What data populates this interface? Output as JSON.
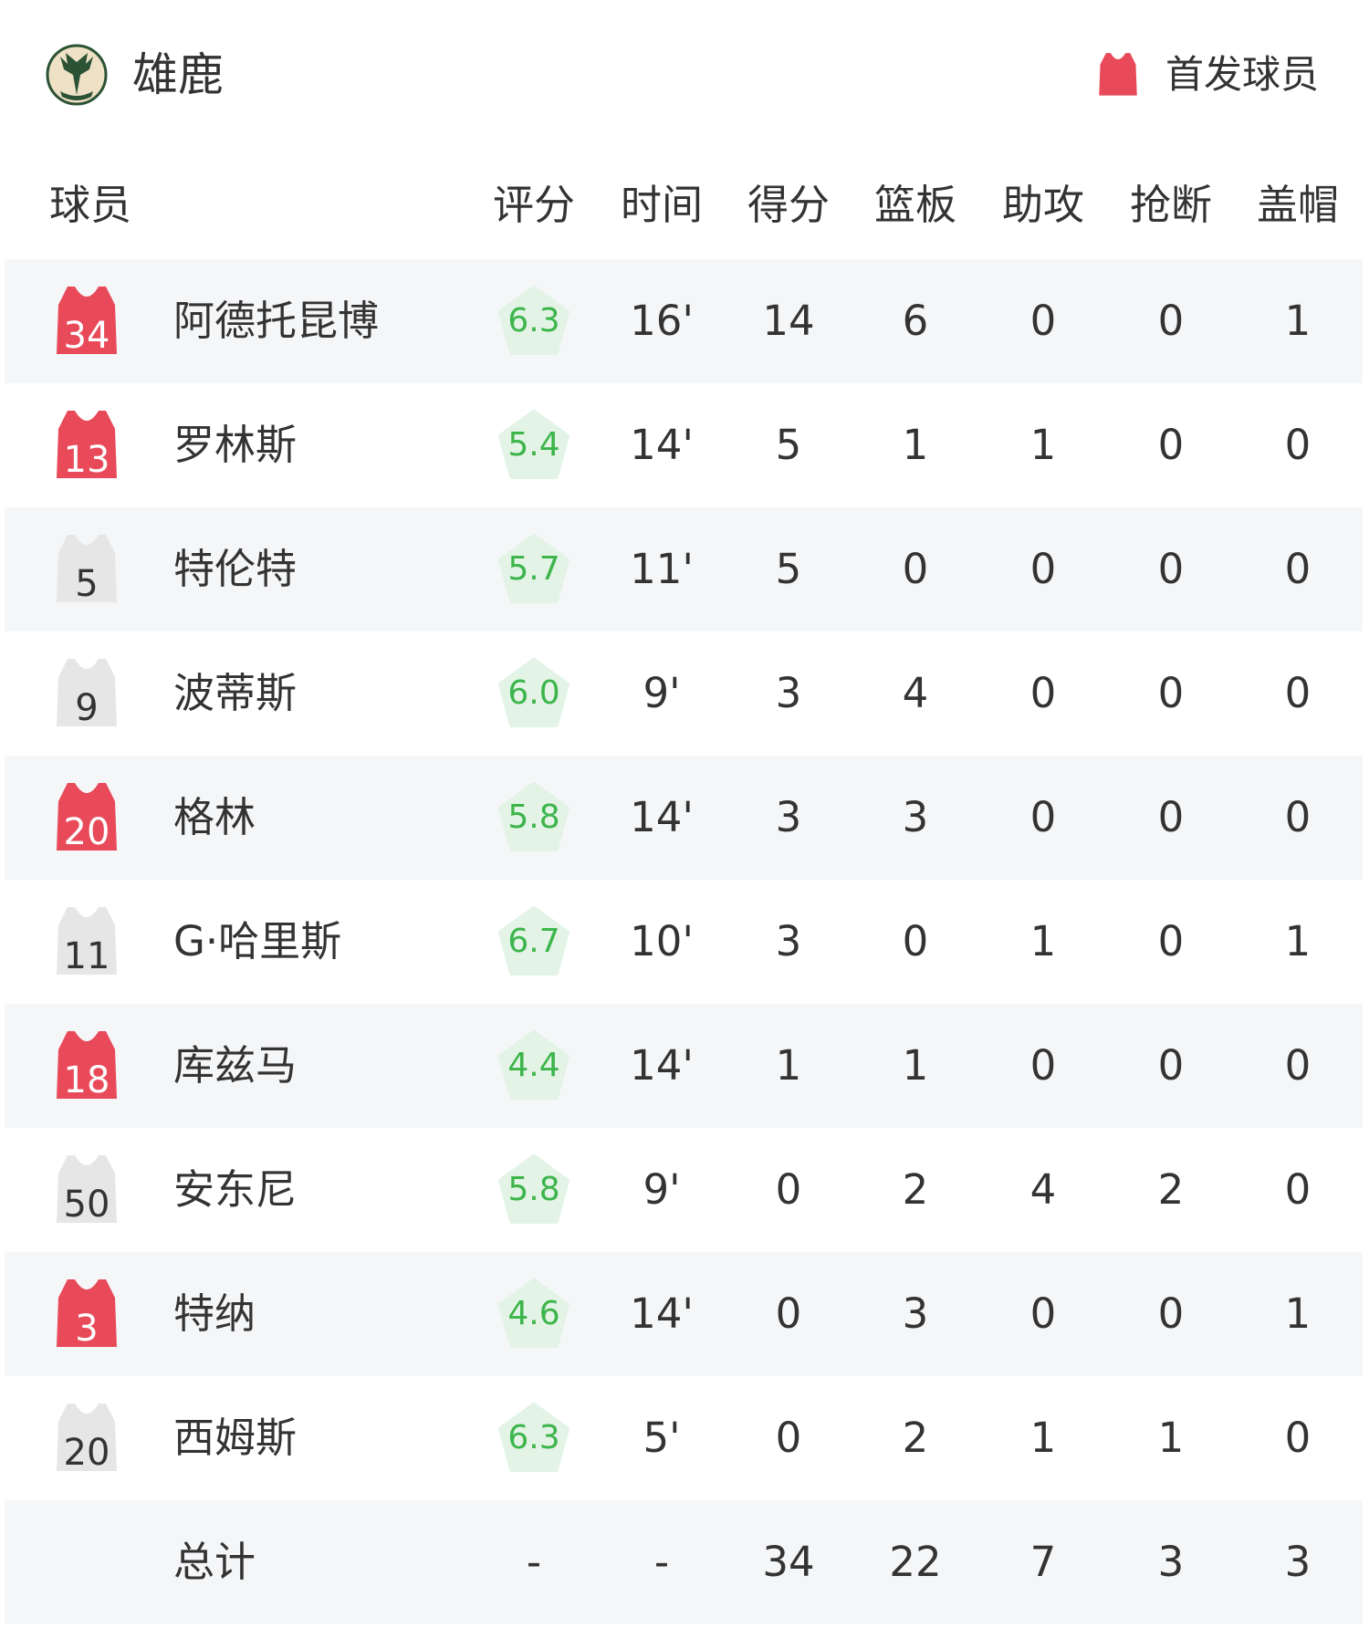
{
  "header": {
    "team_name": "雄鹿",
    "logo_text": "BUCKS",
    "legend_label": "首发球员"
  },
  "colors": {
    "starter": "#e84a5a",
    "bench": "#e6e6e6",
    "rating_text": "#3cb54a",
    "rating_bg": "#e3f3e6",
    "row_alt": "#f5f6f8"
  },
  "columns": [
    "球员",
    "评分",
    "时间",
    "得分",
    "篮板",
    "助攻",
    "抢断",
    "盖帽"
  ],
  "players": [
    {
      "number": "34",
      "starter": true,
      "name": "阿德托昆博",
      "rating": "6.3",
      "time": "16'",
      "pts": "14",
      "reb": "6",
      "ast": "0",
      "stl": "0",
      "blk": "1"
    },
    {
      "number": "13",
      "starter": true,
      "name": "罗林斯",
      "rating": "5.4",
      "time": "14'",
      "pts": "5",
      "reb": "1",
      "ast": "1",
      "stl": "0",
      "blk": "0"
    },
    {
      "number": "5",
      "starter": false,
      "name": "特伦特",
      "rating": "5.7",
      "time": "11'",
      "pts": "5",
      "reb": "0",
      "ast": "0",
      "stl": "0",
      "blk": "0"
    },
    {
      "number": "9",
      "starter": false,
      "name": "波蒂斯",
      "rating": "6.0",
      "time": "9'",
      "pts": "3",
      "reb": "4",
      "ast": "0",
      "stl": "0",
      "blk": "0"
    },
    {
      "number": "20",
      "starter": true,
      "name": "格林",
      "rating": "5.8",
      "time": "14'",
      "pts": "3",
      "reb": "3",
      "ast": "0",
      "stl": "0",
      "blk": "0"
    },
    {
      "number": "11",
      "starter": false,
      "name": "G·哈里斯",
      "rating": "6.7",
      "time": "10'",
      "pts": "3",
      "reb": "0",
      "ast": "1",
      "stl": "0",
      "blk": "1"
    },
    {
      "number": "18",
      "starter": true,
      "name": "库兹马",
      "rating": "4.4",
      "time": "14'",
      "pts": "1",
      "reb": "1",
      "ast": "0",
      "stl": "0",
      "blk": "0"
    },
    {
      "number": "50",
      "starter": false,
      "name": "安东尼",
      "rating": "5.8",
      "time": "9'",
      "pts": "0",
      "reb": "2",
      "ast": "4",
      "stl": "2",
      "blk": "0"
    },
    {
      "number": "3",
      "starter": true,
      "name": "特纳",
      "rating": "4.6",
      "time": "14'",
      "pts": "0",
      "reb": "3",
      "ast": "0",
      "stl": "0",
      "blk": "1"
    },
    {
      "number": "20",
      "starter": false,
      "name": "西姆斯",
      "rating": "6.3",
      "time": "5'",
      "pts": "0",
      "reb": "2",
      "ast": "1",
      "stl": "1",
      "blk": "0"
    }
  ],
  "totals": {
    "label": "总计",
    "rating": "-",
    "time": "-",
    "pts": "34",
    "reb": "22",
    "ast": "7",
    "stl": "3",
    "blk": "3"
  }
}
